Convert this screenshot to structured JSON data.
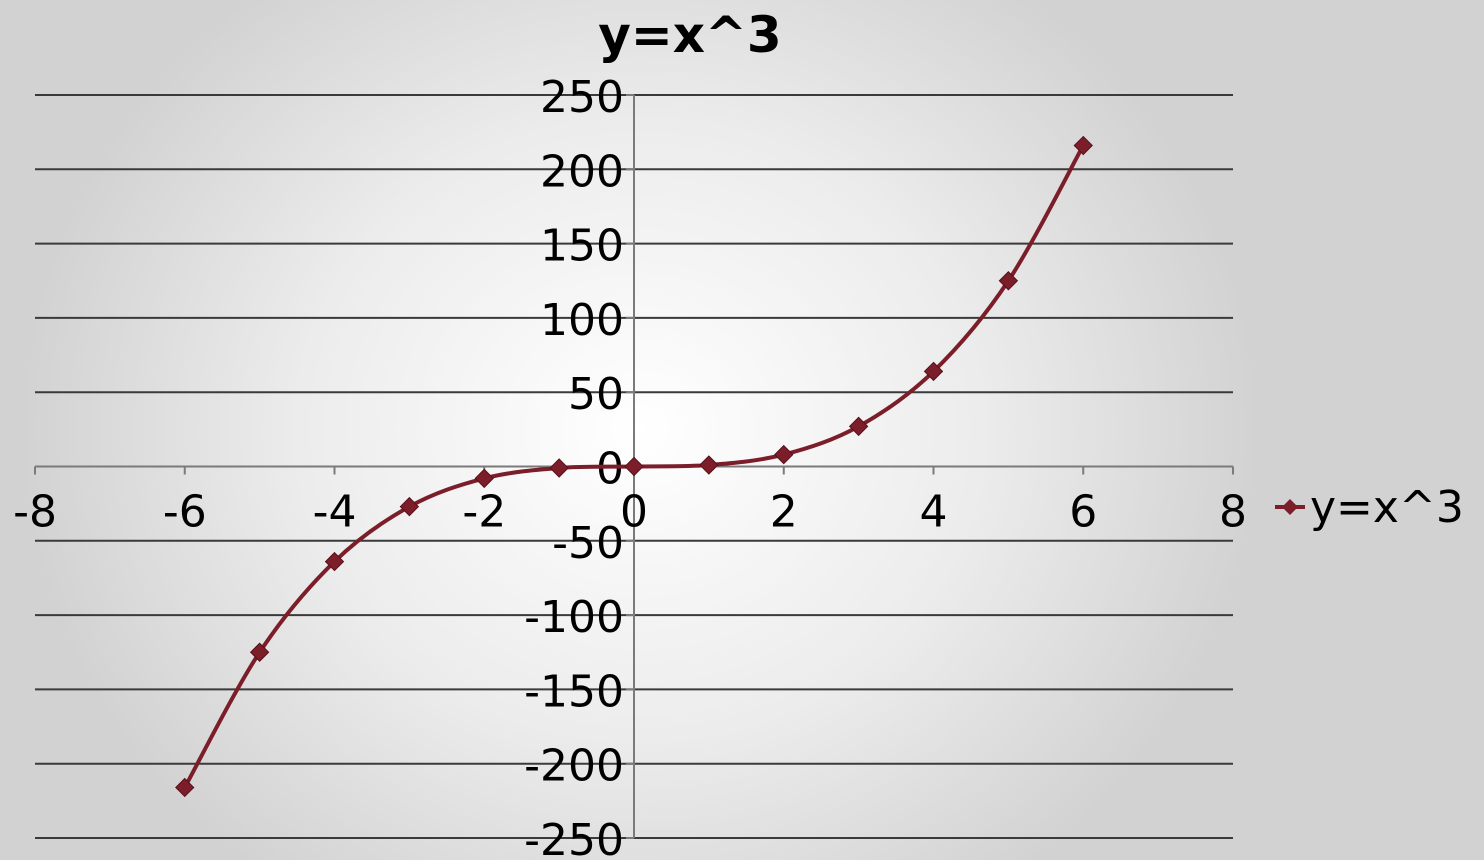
{
  "chart_data": {
    "type": "scatter",
    "title": "y=x^3",
    "xlabel": "",
    "ylabel": "",
    "xlim": [
      -8,
      8
    ],
    "ylim": [
      -250,
      250
    ],
    "x_ticks": [
      -8,
      -6,
      -4,
      -2,
      0,
      2,
      4,
      6,
      8
    ],
    "y_ticks": [
      -250,
      -200,
      -150,
      -100,
      -50,
      0,
      50,
      100,
      150,
      200,
      250
    ],
    "grid": true,
    "legend_position": "right",
    "smooth_line": true,
    "series": [
      {
        "name": "y=x^3",
        "color": "#7b1e2a",
        "marker": "diamond",
        "x": [
          -6,
          -5,
          -4,
          -3,
          -2,
          -1,
          0,
          1,
          2,
          3,
          4,
          5,
          6
        ],
        "y": [
          -216,
          -125,
          -64,
          -27,
          -8,
          -1,
          0,
          1,
          8,
          27,
          64,
          125,
          216
        ]
      }
    ]
  }
}
